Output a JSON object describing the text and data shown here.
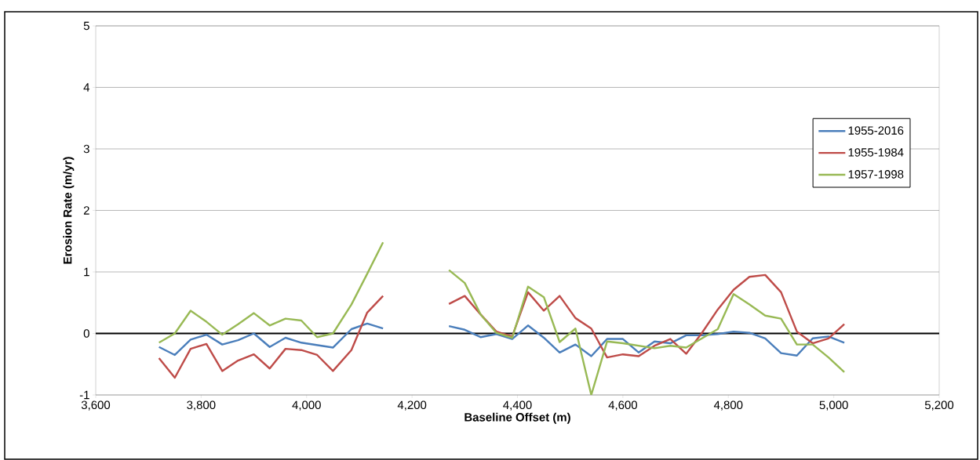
{
  "chart_data": {
    "type": "line",
    "xlabel": "Baseline Offset (m)",
    "ylabel": "Erosion Rate (m/yr)",
    "x": [
      3720,
      3750,
      3780,
      3810,
      3840,
      3870,
      3900,
      3930,
      3960,
      3990,
      4020,
      4050,
      4085,
      4115,
      4145,
      4205,
      4270,
      4300,
      4330,
      4360,
      4390,
      4420,
      4450,
      4480,
      4510,
      4540,
      4570,
      4600,
      4630,
      4660,
      4690,
      4720,
      4750,
      4780,
      4810,
      4840,
      4870,
      4900,
      4930,
      4960,
      4990,
      5020
    ],
    "series": [
      {
        "name": "1955-2016",
        "color": "#4a7ebb",
        "values": [
          -0.22,
          -0.35,
          -0.1,
          -0.02,
          -0.18,
          -0.11,
          0,
          -0.22,
          -0.07,
          -0.15,
          -0.19,
          -0.23,
          0.07,
          0.16,
          0.08,
          null,
          0.12,
          0.06,
          -0.06,
          -0.01,
          -0.09,
          0.13,
          -0.07,
          -0.31,
          -0.18,
          -0.37,
          -0.09,
          -0.09,
          -0.31,
          -0.13,
          -0.16,
          -0.03,
          -0.03,
          -0.01,
          0.03,
          0.01,
          -0.08,
          -0.32,
          -0.36,
          -0.08,
          -0.05,
          -0.15
        ]
      },
      {
        "name": "1955-1984",
        "color": "#be4b48",
        "values": [
          -0.4,
          -0.72,
          -0.25,
          -0.17,
          -0.61,
          -0.44,
          -0.34,
          -0.57,
          -0.25,
          -0.27,
          -0.35,
          -0.61,
          -0.27,
          0.34,
          0.61,
          null,
          0.48,
          0.61,
          0.31,
          0.03,
          -0.05,
          0.67,
          0.37,
          0.61,
          0.25,
          0.08,
          -0.39,
          -0.34,
          -0.37,
          -0.2,
          -0.09,
          -0.33,
          0.01,
          0.39,
          0.71,
          0.92,
          0.95,
          0.67,
          0.03,
          -0.16,
          -0.08,
          0.15
        ]
      },
      {
        "name": "1957-1998",
        "color": "#98b954",
        "values": [
          -0.15,
          0,
          0.37,
          0.19,
          -0.02,
          0.15,
          0.33,
          0.13,
          0.24,
          0.21,
          -0.06,
          0,
          0.47,
          0.97,
          1.48,
          null,
          1.03,
          0.82,
          0.31,
          0.01,
          -0.07,
          0.76,
          0.59,
          -0.14,
          0.08,
          -1,
          -0.13,
          -0.16,
          -0.2,
          -0.24,
          -0.2,
          -0.23,
          -0.08,
          0.07,
          0.64,
          0.47,
          0.29,
          0.24,
          -0.18,
          -0.18,
          -0.39,
          -0.63
        ]
      }
    ],
    "xlim": [
      3600,
      5200
    ],
    "ylim": [
      -1,
      5
    ],
    "xticks": [
      {
        "value": 3600,
        "label": "3,600"
      },
      {
        "value": 3800,
        "label": "3,800"
      },
      {
        "value": 4000,
        "label": "4,000"
      },
      {
        "value": 4200,
        "label": "4,200"
      },
      {
        "value": 4400,
        "label": "4,400"
      },
      {
        "value": 4600,
        "label": "4,600"
      },
      {
        "value": 4800,
        "label": "4,800"
      },
      {
        "value": 5000,
        "label": "5,000"
      },
      {
        "value": 5200,
        "label": "5,200"
      }
    ],
    "yticks": [
      -1,
      0,
      1,
      2,
      3,
      4,
      5
    ],
    "ref_lines": [
      {
        "axis": "y",
        "value": 0,
        "color": "#000000"
      }
    ],
    "grid": "y",
    "legend": "top right",
    "marker": "none",
    "line_style": "solid"
  }
}
